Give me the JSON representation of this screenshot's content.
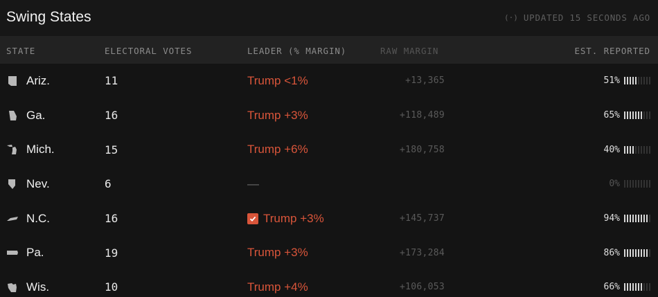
{
  "header": {
    "title": "Swing States",
    "updated_text": "UPDATED 15 SECONDS AGO",
    "updated_icon": "broadcast-signal-icon"
  },
  "columns": {
    "state": "STATE",
    "electoral_votes": "ELECTORAL VOTES",
    "leader": "LEADER (% MARGIN)",
    "raw_margin": "RAW MARGIN",
    "reported": "EST. REPORTED"
  },
  "colors": {
    "background": "#141414",
    "column_header_bg": "#222222",
    "trump_red": "#d9553a",
    "bar_on": "#d8d8d8",
    "bar_off": "#333333"
  },
  "rows": [
    {
      "state": "Ariz.",
      "icon": "arizona-outline-icon",
      "ev": "11",
      "leader": "Trump <1%",
      "called": false,
      "raw": "+13,365",
      "reported": "51%",
      "reported_fraction": 0.51
    },
    {
      "state": "Ga.",
      "icon": "georgia-outline-icon",
      "ev": "16",
      "leader": "Trump +3%",
      "called": false,
      "raw": "+118,489",
      "reported": "65%",
      "reported_fraction": 0.65
    },
    {
      "state": "Mich.",
      "icon": "michigan-outline-icon",
      "ev": "15",
      "leader": "Trump +6%",
      "called": false,
      "raw": "+180,758",
      "reported": "40%",
      "reported_fraction": 0.4
    },
    {
      "state": "Nev.",
      "icon": "nevada-outline-icon",
      "ev": "6",
      "leader": "—",
      "called": false,
      "raw": "",
      "reported": "0%",
      "reported_fraction": 0.0
    },
    {
      "state": "N.C.",
      "icon": "north-carolina-outline-icon",
      "ev": "16",
      "leader": "Trump +3%",
      "called": true,
      "raw": "+145,737",
      "reported": "94%",
      "reported_fraction": 0.94
    },
    {
      "state": "Pa.",
      "icon": "pennsylvania-outline-icon",
      "ev": "19",
      "leader": "Trump +3%",
      "called": false,
      "raw": "+173,284",
      "reported": "86%",
      "reported_fraction": 0.86
    },
    {
      "state": "Wis.",
      "icon": "wisconsin-outline-icon",
      "ev": "10",
      "leader": "Trump +4%",
      "called": false,
      "raw": "+106,053",
      "reported": "66%",
      "reported_fraction": 0.66
    }
  ]
}
